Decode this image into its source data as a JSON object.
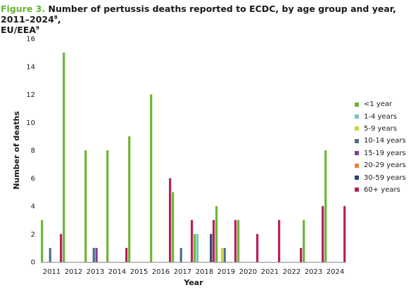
{
  "title": {
    "figure_label": "Figure 3.",
    "text": "Number of pertussis deaths reported to ECDC, by age group and year, 2011–2024",
    "sup1": "8",
    "text2": ",",
    "line2": "EU/EEA",
    "sup2": "9"
  },
  "chart_data": {
    "type": "bar",
    "title": "Number of pertussis deaths reported to ECDC, by age group and year, 2011–2024",
    "xlabel": "Year",
    "ylabel": "Number of deaths",
    "ylim": [
      0,
      16
    ],
    "yticks": [
      0,
      2,
      4,
      6,
      8,
      10,
      12,
      14,
      16
    ],
    "grid": false,
    "legend_position": "right",
    "categories": [
      "2011",
      "2012",
      "2013",
      "2014",
      "2015",
      "2016",
      "2017",
      "2018",
      "2019",
      "2020",
      "2021",
      "2022",
      "2023",
      "2024"
    ],
    "series": [
      {
        "name": "<1 year",
        "color": "#6bb535",
        "values": [
          3,
          15,
          8,
          8,
          9,
          12,
          5,
          2,
          4,
          3,
          0,
          0,
          3,
          8
        ]
      },
      {
        "name": "1-4 years",
        "color": "#7cc4c4",
        "values": [
          0,
          0,
          0,
          0,
          0,
          0,
          0,
          2,
          0,
          0,
          0,
          0,
          0,
          0
        ]
      },
      {
        "name": "5-9 years",
        "color": "#c5d93a",
        "values": [
          0,
          0,
          0,
          0,
          0,
          0,
          0,
          0,
          1,
          0,
          0,
          0,
          0,
          0
        ]
      },
      {
        "name": "10-14 years",
        "color": "#4d6f8c",
        "values": [
          1,
          0,
          1,
          0,
          0,
          0,
          1,
          0,
          1,
          0,
          0,
          0,
          0,
          0
        ]
      },
      {
        "name": "15-19 years",
        "color": "#7b3f8c",
        "values": [
          0,
          0,
          1,
          0,
          0,
          0,
          0,
          0,
          0,
          0,
          0,
          0,
          0,
          0
        ]
      },
      {
        "name": "20-29 years",
        "color": "#ef7b3d",
        "values": [
          0,
          0,
          0,
          0,
          0,
          0,
          0,
          0,
          0,
          0,
          0,
          0,
          0,
          0
        ]
      },
      {
        "name": "30-59 years",
        "color": "#26426b",
        "values": [
          0,
          0,
          0,
          0,
          0,
          0,
          0,
          2,
          0,
          0,
          0,
          0,
          0,
          0
        ]
      },
      {
        "name": "60+ years",
        "color": "#b81d5c",
        "values": [
          2,
          0,
          0,
          1,
          0,
          6,
          3,
          3,
          3,
          2,
          3,
          1,
          4,
          4
        ]
      }
    ]
  }
}
